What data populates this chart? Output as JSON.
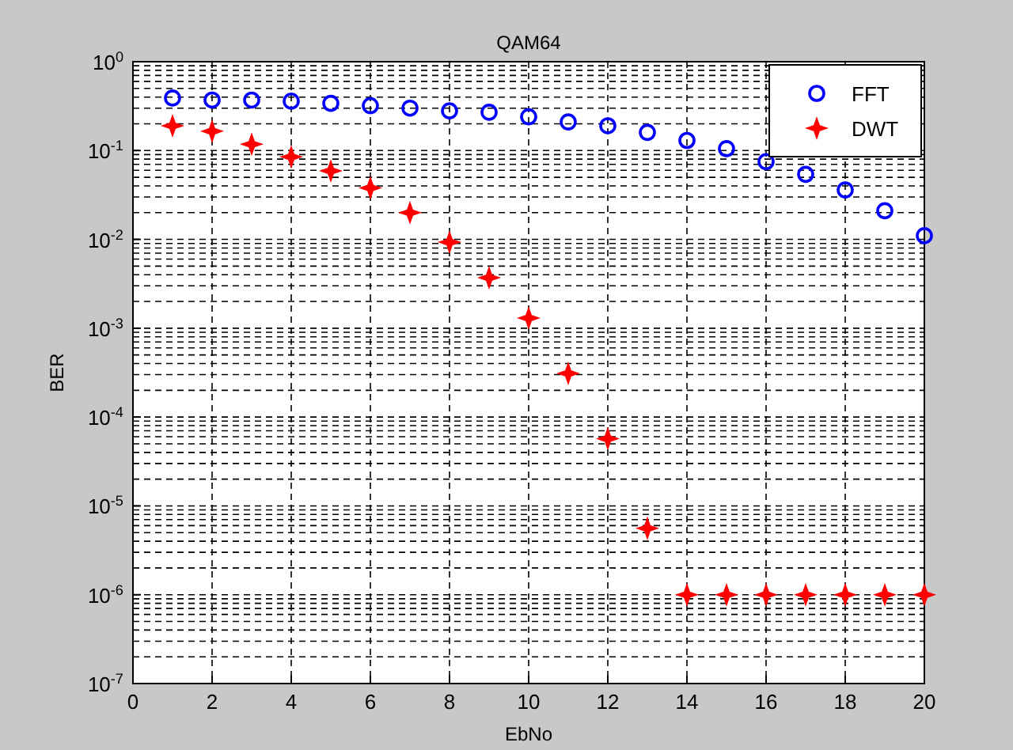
{
  "chart_data": {
    "type": "scatter",
    "title": "QAM64",
    "xlabel": "EbNo",
    "ylabel": "BER",
    "log": "y",
    "grid": true,
    "legend": "top right",
    "x": [
      1,
      2,
      3,
      4,
      5,
      6,
      7,
      8,
      9,
      10,
      11,
      12,
      13,
      14,
      15,
      16,
      17,
      18,
      19,
      20
    ],
    "xlim": [
      0,
      20
    ],
    "xticks": [
      0,
      2,
      4,
      6,
      8,
      10,
      12,
      14,
      16,
      18,
      20
    ],
    "ylim": [
      1e-07,
      1
    ],
    "yticks": [
      {
        "value": 1e-07,
        "label": "10$^{-7}$"
      },
      {
        "value": 1e-06,
        "label": "10$^{-6}$"
      },
      {
        "value": 1e-05,
        "label": "10$^{-5}$"
      },
      {
        "value": 0.0001,
        "label": "10$^{-4}$"
      },
      {
        "value": 0.001,
        "label": "10$^{-3}$"
      },
      {
        "value": 0.01,
        "label": "10$^{-2}$"
      },
      {
        "value": 0.1,
        "label": "10$^{-1}$"
      },
      {
        "value": 1,
        "label": "10$^{0}$"
      }
    ],
    "series": [
      {
        "name": "FFT",
        "color": "#0000ff",
        "marker": "circle",
        "values": [
          0.39,
          0.37,
          0.37,
          0.36,
          0.34,
          0.32,
          0.3,
          0.28,
          0.27,
          0.24,
          0.21,
          0.19,
          0.16,
          0.13,
          0.105,
          0.075,
          0.054,
          0.036,
          0.021,
          0.011
        ]
      },
      {
        "name": "DWT",
        "color": "#ff0000",
        "marker": "star",
        "values": [
          0.19,
          0.165,
          0.118,
          0.085,
          0.059,
          0.038,
          0.02,
          0.0093,
          0.0037,
          0.0013,
          0.00031,
          5.7e-05,
          5.6e-06,
          1e-06,
          1e-06,
          1e-06,
          1e-06,
          1e-06,
          1e-06,
          1e-06
        ]
      }
    ]
  }
}
